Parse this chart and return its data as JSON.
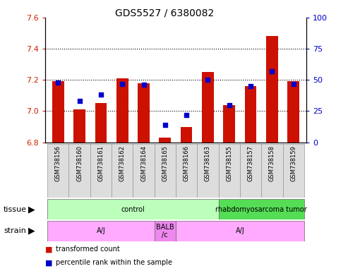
{
  "title": "GDS5527 / 6380082",
  "samples": [
    "GSM738156",
    "GSM738160",
    "GSM738161",
    "GSM738162",
    "GSM738164",
    "GSM738165",
    "GSM738166",
    "GSM738163",
    "GSM738155",
    "GSM738157",
    "GSM738158",
    "GSM738159"
  ],
  "bar_values": [
    7.19,
    7.01,
    7.05,
    7.21,
    7.18,
    6.83,
    6.9,
    7.25,
    7.04,
    7.16,
    7.48,
    7.19
  ],
  "dot_values": [
    48,
    33,
    38,
    47,
    46,
    14,
    22,
    50,
    30,
    45,
    57,
    47
  ],
  "ylim": [
    6.8,
    7.6
  ],
  "y2lim": [
    0,
    100
  ],
  "yticks": [
    6.8,
    7.0,
    7.2,
    7.4,
    7.6
  ],
  "y2ticks": [
    0,
    25,
    50,
    75,
    100
  ],
  "bar_color": "#cc1100",
  "dot_color": "#0000cc",
  "bar_bottom": 6.8,
  "tick_label_color_left": "#cc2200",
  "tick_label_color_right": "#0000cc",
  "tissue_data": [
    {
      "start": 0,
      "end": 8,
      "label": "control",
      "color": "#bbffbb"
    },
    {
      "start": 8,
      "end": 12,
      "label": "rhabdomyosarcoma tumor",
      "color": "#55dd55"
    }
  ],
  "strain_data": [
    {
      "start": 0,
      "end": 5,
      "label": "A/J",
      "color": "#ffaaff"
    },
    {
      "start": 5,
      "end": 6,
      "label": "BALB\n/c",
      "color": "#ee88ee"
    },
    {
      "start": 6,
      "end": 12,
      "label": "A/J",
      "color": "#ffaaff"
    }
  ],
  "legend_items": [
    {
      "label": "transformed count",
      "color": "#cc1100"
    },
    {
      "label": "percentile rank within the sample",
      "color": "#0000cc"
    }
  ],
  "xlabel_bg": "#dddddd",
  "xlabel_border": "#999999",
  "plot_border": "#000000"
}
